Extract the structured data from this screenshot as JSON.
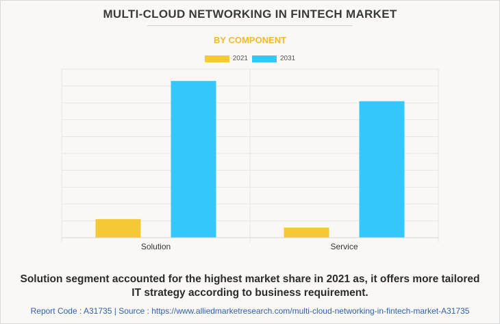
{
  "title": "MULTI-CLOUD NETWORKING IN FINTECH MARKET",
  "subtitle": "BY COMPONENT",
  "caption_line1": "Solution segment accounted for the highest market share in 2021 as, it offers more tailored",
  "caption_line2": "IT strategy according to business requirement.",
  "footer": {
    "report_code": "Report Code : A31735",
    "separator": "|",
    "source": "Source : https://www.alliedmarketresearch.com/multi-cloud-networking-in-fintech-market-A31735"
  },
  "colors": {
    "series_2021": "#f5c936",
    "series_2031": "#33c7fc",
    "grid": "#e6e6e6",
    "background": "#f9f8f4"
  },
  "chart_data": {
    "type": "bar",
    "categories": [
      "Solution",
      "Service"
    ],
    "series": [
      {
        "name": "2021",
        "values": [
          1.1,
          0.6
        ]
      },
      {
        "name": "2031",
        "values": [
          9.3,
          8.1
        ]
      }
    ],
    "ylim": [
      0,
      10
    ],
    "grid": true,
    "legend_position": "top-center",
    "y_tick_labels_shown": false
  }
}
